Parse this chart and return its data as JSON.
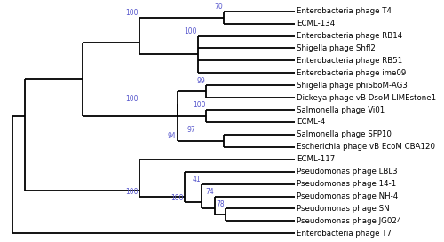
{
  "figsize": [
    5.0,
    2.73
  ],
  "dpi": 100,
  "bg_color": "#ffffff",
  "line_color": "black",
  "label_color": "black",
  "bootstrap_color": "#5555cc",
  "line_width": 1.3,
  "font_size": 6.2,
  "bootstrap_font_size": 5.5,
  "taxa": [
    "Enterobacteria phage T4",
    "ECML-134",
    "Enterobacteria phage RB14",
    "Shigella phage Shfl2",
    "Enterobacteria phage RB51",
    "Enterobacteria phage ime09",
    "Shigella phage phiSboM-AG3",
    "Dickeya phage vB DsoM LIMEstone1",
    "Salmonella phage Vi01",
    "ECML-4",
    "Salmonella phage SFP10",
    "Escherichia phage vB EcoM CBA120",
    "ECML-117",
    "Pseudomonas phage LBL3",
    "Pseudomonas phage 14-1",
    "Pseudomonas phage NH-4",
    "Pseudomonas phage SN",
    "Pseudomonas phage JG024",
    "Enterobacteria phage T7"
  ]
}
